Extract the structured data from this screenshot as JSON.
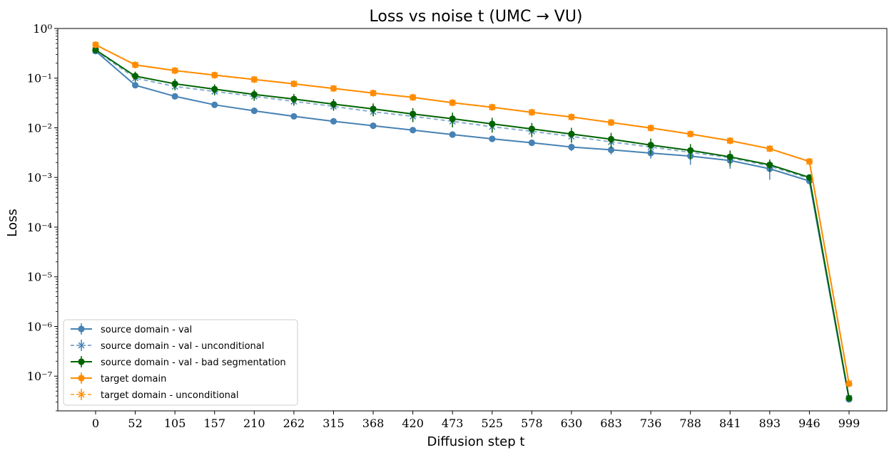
{
  "chart_data": {
    "type": "line",
    "title": "Loss vs noise t (UMC → VU)",
    "xlabel": "Diffusion step t",
    "ylabel": "Loss",
    "yscale": "log",
    "ylim": [
      2e-08,
      1.0
    ],
    "yticks": [
      {
        "value": 1e-07,
        "label": "10⁻⁷"
      },
      {
        "value": 1e-06,
        "label": "10⁻⁶"
      },
      {
        "value": 1e-05,
        "label": "10⁻⁵"
      },
      {
        "value": 0.0001,
        "label": "10⁻⁴"
      },
      {
        "value": 0.001,
        "label": "10⁻³"
      },
      {
        "value": 0.01,
        "label": "10⁻²"
      },
      {
        "value": 0.1,
        "label": "10⁻¹"
      },
      {
        "value": 1,
        "label": "10⁰"
      }
    ],
    "categories": [
      "0",
      "52",
      "105",
      "157",
      "210",
      "262",
      "315",
      "368",
      "420",
      "473",
      "525",
      "578",
      "630",
      "683",
      "736",
      "788",
      "841",
      "893",
      "946",
      "999"
    ],
    "legend_position": "lower-left",
    "series": [
      {
        "name": "source domain - val",
        "color": "#4682b4",
        "dashed": false,
        "marker": "circle",
        "values": [
          0.35,
          0.072,
          0.043,
          0.029,
          0.022,
          0.017,
          0.0135,
          0.011,
          0.009,
          0.0073,
          0.006,
          0.005,
          0.0041,
          0.0036,
          0.0031,
          0.0027,
          0.0022,
          0.0015,
          0.00085,
          3.4e-08
        ],
        "errors": [
          0,
          0,
          0,
          0,
          0,
          0,
          0,
          0,
          0,
          0,
          0.0008,
          0.0007,
          0.0007,
          0.0007,
          0.0007,
          0.0009,
          0.0007,
          0.0006,
          0,
          0
        ]
      },
      {
        "name": "source domain - val - unconditional",
        "color": "#4682b4",
        "dashed": true,
        "marker": "x",
        "values": [
          0.36,
          0.1,
          0.068,
          0.054,
          0.043,
          0.034,
          0.027,
          0.021,
          0.017,
          0.0135,
          0.0105,
          0.0085,
          0.0067,
          0.0052,
          0.0041,
          0.0032,
          0.0025,
          0.0017,
          0.00095,
          3.6e-08
        ],
        "errors": [
          0,
          0,
          0,
          0,
          0,
          0,
          0,
          0,
          0,
          0,
          0,
          0,
          0,
          0,
          0,
          0,
          0,
          0,
          0,
          0
        ]
      },
      {
        "name": "source domain - val - bad segmentation",
        "color": "#006400",
        "dashed": false,
        "marker": "circle",
        "values": [
          0.37,
          0.11,
          0.077,
          0.06,
          0.047,
          0.038,
          0.03,
          0.024,
          0.019,
          0.0152,
          0.012,
          0.0095,
          0.0075,
          0.0059,
          0.0045,
          0.0035,
          0.0026,
          0.0018,
          0.001,
          3.6e-08
        ],
        "errors": [
          0.05,
          0.025,
          0.02,
          0.015,
          0.012,
          0.01,
          0.008,
          0.007,
          0.006,
          0.005,
          0.004,
          0.003,
          0.0025,
          0.002,
          0.0016,
          0.0012,
          0.0009,
          0.0005,
          0,
          0
        ]
      },
      {
        "name": "target domain",
        "color": "#ff8c00",
        "dashed": false,
        "marker": "circle",
        "values": [
          0.47,
          0.185,
          0.142,
          0.115,
          0.094,
          0.077,
          0.062,
          0.05,
          0.041,
          0.032,
          0.026,
          0.0205,
          0.0165,
          0.0128,
          0.0099,
          0.0075,
          0.0055,
          0.0038,
          0.0021,
          7e-08
        ],
        "errors": [
          0,
          0,
          0,
          0,
          0,
          0,
          0,
          0,
          0,
          0,
          0,
          0,
          0,
          0,
          0,
          0,
          0,
          0,
          0,
          0
        ]
      },
      {
        "name": "target domain - unconditional",
        "color": "#ff8c00",
        "dashed": true,
        "marker": "x",
        "values": [
          0.47,
          0.185,
          0.142,
          0.115,
          0.094,
          0.077,
          0.062,
          0.05,
          0.041,
          0.032,
          0.026,
          0.0205,
          0.0165,
          0.0128,
          0.0099,
          0.0075,
          0.0055,
          0.0038,
          0.0021,
          7.2e-08
        ],
        "errors": [
          0,
          0,
          0,
          0,
          0,
          0,
          0,
          0,
          0,
          0,
          0,
          0,
          0,
          0,
          0,
          0,
          0,
          0,
          0,
          0
        ]
      }
    ]
  }
}
